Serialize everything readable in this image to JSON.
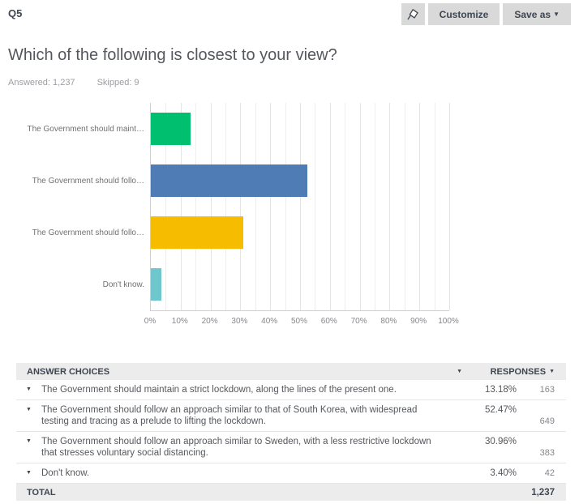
{
  "header": {
    "question_number": "Q5",
    "buttons": {
      "customize": "Customize",
      "save_as": "Save as",
      "save_as_caret": "▼"
    }
  },
  "question": {
    "title": "Which of the following is closest to your view?",
    "answered_label": "Answered: 1,237",
    "skipped_label": "Skipped: 9"
  },
  "chart_data": {
    "type": "bar",
    "orientation": "horizontal",
    "categories": [
      "The Government should maint…",
      "The Government should follo…",
      "The Government should follo…",
      "Don't know."
    ],
    "values": [
      13.18,
      52.47,
      30.96,
      3.4
    ],
    "bar_colors": [
      "#00BF6F",
      "#507CB5",
      "#F5BC00",
      "#6EC7CD"
    ],
    "x_ticks": [
      "0%",
      "10%",
      "20%",
      "30%",
      "40%",
      "50%",
      "60%",
      "70%",
      "80%",
      "90%",
      "100%"
    ],
    "xlim": [
      0,
      100
    ],
    "grid": true,
    "minor_grid_step": 5
  },
  "table": {
    "headers": {
      "answer_choices": "ANSWER CHOICES",
      "responses": "RESPONSES",
      "sort_caret": "▼"
    },
    "row_caret": "▼",
    "rows": [
      {
        "answer": "The Government should maintain a strict lockdown, along the lines of the present one.",
        "percent": "13.18%",
        "count": "163"
      },
      {
        "answer": "The Government should follow an approach similar to that of South Korea, with widespread testing and tracing as a prelude to lifting the lockdown.",
        "percent": "52.47%",
        "count": "649"
      },
      {
        "answer": "The Government should follow an approach similar to Sweden, with a less restrictive lockdown that stresses voluntary social distancing.",
        "percent": "30.96%",
        "count": "383"
      },
      {
        "answer": "Don't know.",
        "percent": "3.40%",
        "count": "42"
      }
    ],
    "total": {
      "label": "TOTAL",
      "count": "1,237"
    }
  }
}
